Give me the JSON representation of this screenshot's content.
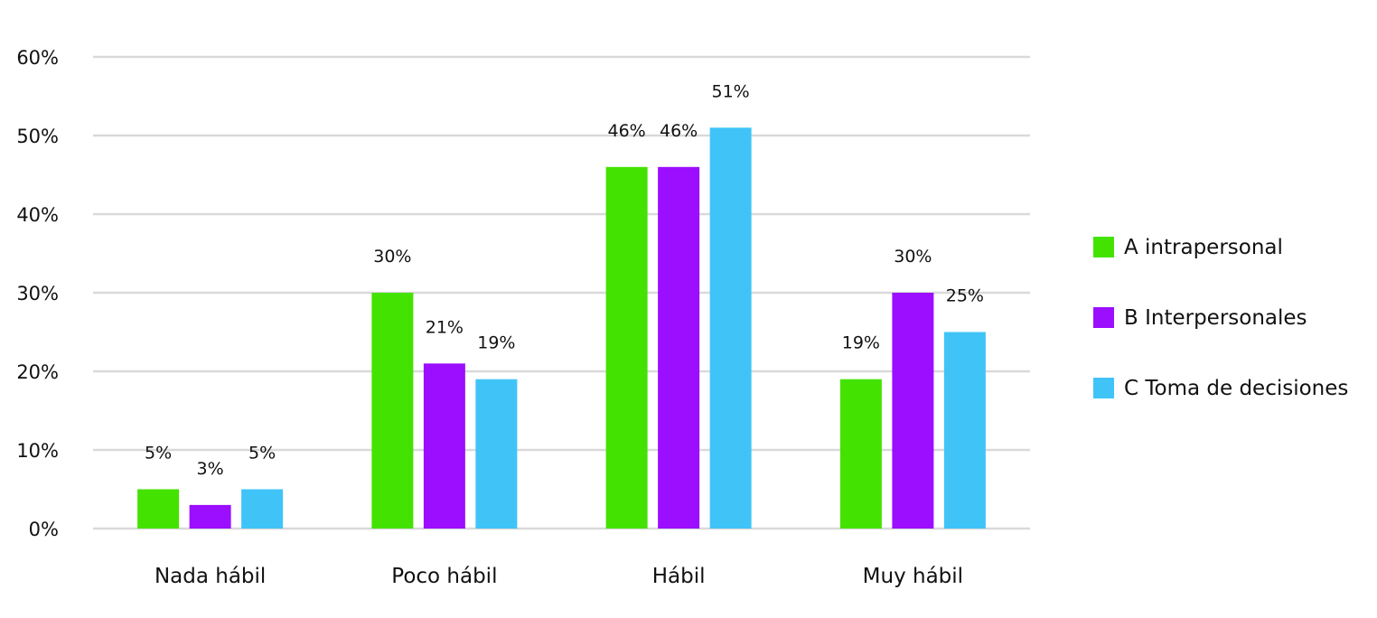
{
  "chart_data": {
    "type": "bar",
    "title": "",
    "xlabel": "",
    "ylabel": "",
    "ylim": [
      0,
      60
    ],
    "y_ticks": [
      "0%",
      "10%",
      "20%",
      "30%",
      "40%",
      "50%",
      "60%"
    ],
    "y_tick_values": [
      0,
      10,
      20,
      30,
      40,
      50,
      60
    ],
    "grid": true,
    "legend_position": "right",
    "categories": [
      "Nada hábil",
      "Poco hábil",
      "Hábil",
      "Muy hábil"
    ],
    "series": [
      {
        "name": "A intrapersonal",
        "color": "#44e200",
        "values": [
          5,
          30,
          46,
          19
        ],
        "labels": [
          "5%",
          "30%",
          "46%",
          "19%"
        ]
      },
      {
        "name": "B Interpersonales",
        "color": "#9b0eff",
        "values": [
          3,
          21,
          46,
          30
        ],
        "labels": [
          "3%",
          "21%",
          "46%",
          "30%"
        ]
      },
      {
        "name": "C Toma de decisiones",
        "color": "#40c4f8",
        "values": [
          5,
          19,
          51,
          25
        ],
        "labels": [
          "5%",
          "19%",
          "51%",
          "25%"
        ]
      }
    ],
    "grid_color": "#d9d9d9"
  }
}
